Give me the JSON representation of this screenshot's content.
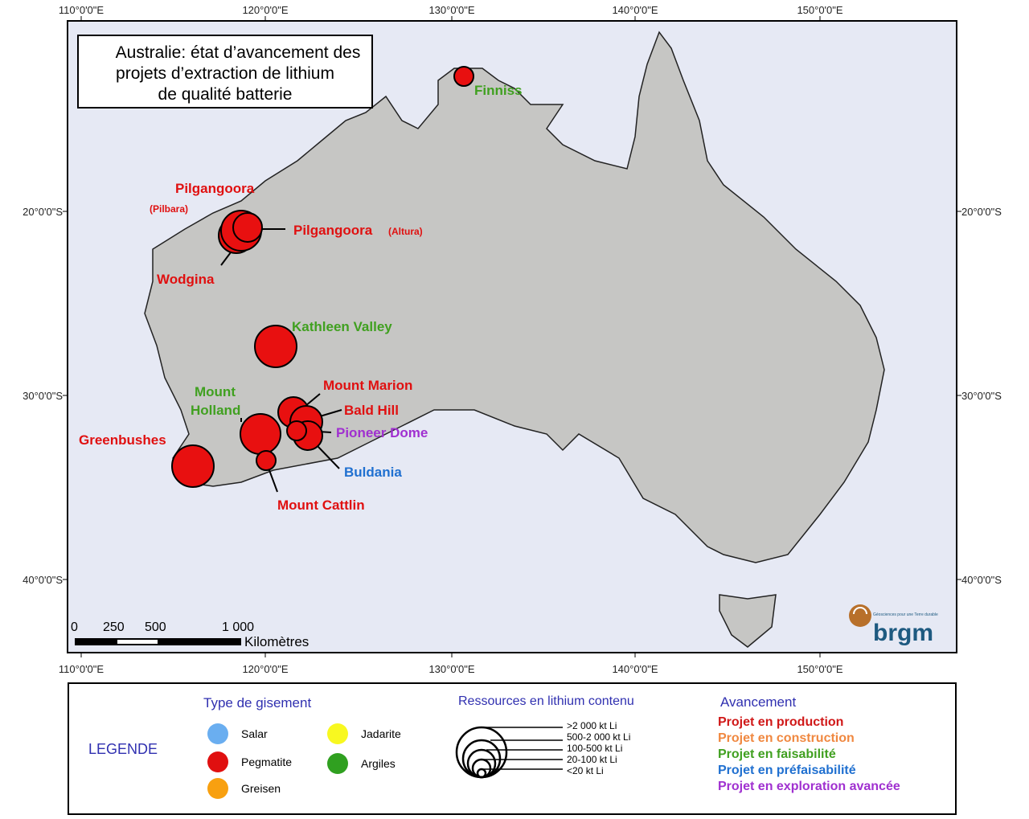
{
  "title": [
    "Australie: état d’avancement des",
    "projets d’extraction de lithium",
    "de qualité batterie"
  ],
  "lon_ticks": [
    "110°0'0\"E",
    "120°0'0\"E",
    "130°0'0\"E",
    "140°0'0\"E",
    "150°0'0\"E"
  ],
  "lat_ticks": [
    "20°0'0\"S",
    "30°0'0\"S",
    "40°0'0\"S"
  ],
  "scale": {
    "labels": [
      "0",
      "250",
      "500",
      "1 000"
    ],
    "unit": "Kilomètres"
  },
  "logo": {
    "name": "brgm",
    "tagline": "Géosciences pour une Terre durable"
  },
  "colors": {
    "production": "#e01010",
    "construction": "#f08030",
    "faisabilite": "#40a020",
    "prefaisabilite": "#2070d0",
    "exploration": "#a030d0",
    "sea": "#e6e9f4",
    "land": "#c6c6c4"
  },
  "deposits": [
    {
      "name": "Finniss",
      "status": "faisabilite"
    },
    {
      "name": "Pilgangoora",
      "sub": "(Pilbara)",
      "status": "production"
    },
    {
      "name": "Pilgangoora",
      "sub": "(Altura)",
      "status": "production"
    },
    {
      "name": "Wodgina",
      "status": "production"
    },
    {
      "name": "Kathleen Valley",
      "status": "faisabilite"
    },
    {
      "name": "Mount Marion",
      "status": "production"
    },
    {
      "name": "Bald Hill",
      "status": "production"
    },
    {
      "name": "Mount Holland",
      "status": "faisabilite"
    },
    {
      "name": "Pioneer Dome",
      "status": "exploration"
    },
    {
      "name": "Greenbushes",
      "status": "production"
    },
    {
      "name": "Buldania",
      "status": "prefaisabilite"
    },
    {
      "name": "Mount Cattlin",
      "status": "production"
    }
  ],
  "legend": {
    "title": "LEGENDE",
    "type_title": "Type de gisement",
    "types": [
      {
        "label": "Salar",
        "color": "#6aaef0"
      },
      {
        "label": "Pegmatite",
        "color": "#e01010"
      },
      {
        "label": "Greisen",
        "color": "#f8a010"
      },
      {
        "label": "Jadarite",
        "color": "#f8f820"
      },
      {
        "label": "Argiles",
        "color": "#30a020"
      }
    ],
    "res_title": "Ressources en lithium contenu",
    "res_classes": [
      ">2 000 kt Li",
      "500-2 000 kt Li",
      "100-500 kt Li",
      "20-100 kt Li",
      "<20 kt Li"
    ],
    "av_title": "Avancement",
    "av": [
      {
        "label": "Projet en production",
        "color": "#d01818"
      },
      {
        "label": "Projet en construction",
        "color": "#f08840"
      },
      {
        "label": "Projet en faisabilité",
        "color": "#40a020"
      },
      {
        "label": "Projet en préfaisabilité",
        "color": "#2070d0"
      },
      {
        "label": "Projet en exploration avancée",
        "color": "#a030d0"
      }
    ]
  }
}
